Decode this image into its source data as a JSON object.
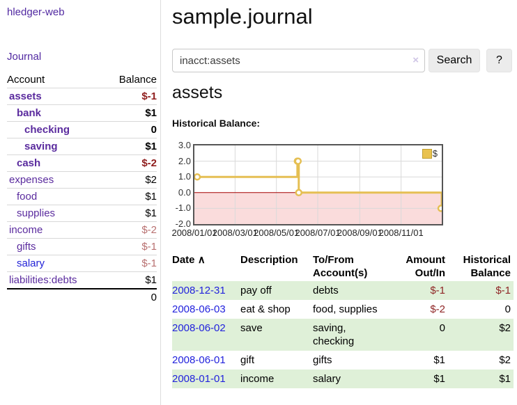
{
  "sidebar": {
    "brand": "hledger-web",
    "journal_link": "Journal",
    "accounts": {
      "col_account": "Account",
      "col_balance": "Balance",
      "rows": [
        {
          "name": "assets",
          "balance": "$-1"
        },
        {
          "name": "bank",
          "balance": "$1"
        },
        {
          "name": "checking",
          "balance": "0"
        },
        {
          "name": "saving",
          "balance": "$1"
        },
        {
          "name": "cash",
          "balance": "$-2"
        },
        {
          "name": "expenses",
          "balance": "$2"
        },
        {
          "name": "food",
          "balance": "$1"
        },
        {
          "name": "supplies",
          "balance": "$1"
        },
        {
          "name": "income",
          "balance": "$-2"
        },
        {
          "name": "gifts",
          "balance": "$-1"
        },
        {
          "name": "salary",
          "balance": "$-1"
        },
        {
          "name": "liabilities:debts",
          "balance": "$1"
        }
      ],
      "total": "0"
    }
  },
  "header": {
    "title": "sample.journal"
  },
  "search": {
    "value": "inacct:assets",
    "clear_icon": "×",
    "search_button": "Search",
    "help_button": "?"
  },
  "account_view": {
    "title": "assets",
    "section_label": "Historical Balance:"
  },
  "chart_data": {
    "type": "line",
    "line_style": "step",
    "title": "Historical Balance",
    "series": [
      {
        "name": "$",
        "points": [
          {
            "date": "2008-01-01",
            "day": 0,
            "value": 1
          },
          {
            "date": "2008-06-01",
            "day": 152,
            "value": 2
          },
          {
            "date": "2008-06-02",
            "day": 153,
            "value": 2
          },
          {
            "date": "2008-06-03",
            "day": 154,
            "value": 0
          },
          {
            "date": "2008-12-31",
            "day": 365,
            "value": -1
          }
        ]
      }
    ],
    "ylim": [
      -2,
      3
    ],
    "x_max_days": 365,
    "y_ticks": [
      {
        "value": 3,
        "label": "3.0"
      },
      {
        "value": 2,
        "label": "2.0"
      },
      {
        "value": 1,
        "label": "1.0"
      },
      {
        "value": 0,
        "label": "0.0"
      },
      {
        "value": -1,
        "label": "-1.0"
      },
      {
        "value": -2,
        "label": "-2.0"
      }
    ],
    "x_ticks": [
      {
        "day": 0,
        "label": "2008/01/01"
      },
      {
        "day": 60,
        "label": "2008/03/01"
      },
      {
        "day": 121,
        "label": "2008/05/01"
      },
      {
        "day": 182,
        "label": "2008/07/01"
      },
      {
        "day": 244,
        "label": "2008/09/01"
      },
      {
        "day": 305,
        "label": "2008/11/01"
      }
    ],
    "legend": {
      "label": "$"
    },
    "grid": true,
    "legend_position": "top-right",
    "colors": {
      "line": "#e5bf53",
      "marker_fill": "#ffffff",
      "negative_fill": "#fadcdc",
      "zero_line": "#a40000",
      "grid": "#d9d9d9",
      "plot_border": "#555555"
    }
  },
  "register": {
    "headers": {
      "date": "Date",
      "sort_icon": "∧",
      "description": "Description",
      "account": "To/From Account(s)",
      "amount": "Amount Out/In",
      "balance": "Historical Balance"
    },
    "rows": [
      {
        "date": "2008-12-31",
        "description": "pay off",
        "account": "debts",
        "amount": "$-1",
        "balance": "$-1"
      },
      {
        "date": "2008-06-03",
        "description": "eat & shop",
        "account": "food, supplies",
        "amount": "$-2",
        "balance": "0"
      },
      {
        "date": "2008-06-02",
        "description": "save",
        "account": "saving, checking",
        "amount": "0",
        "balance": "$2"
      },
      {
        "date": "2008-06-01",
        "description": "gift",
        "account": "gifts",
        "amount": "$1",
        "balance": "$2"
      },
      {
        "date": "2008-01-01",
        "description": "income",
        "account": "salary",
        "amount": "$1",
        "balance": "$1"
      }
    ]
  }
}
